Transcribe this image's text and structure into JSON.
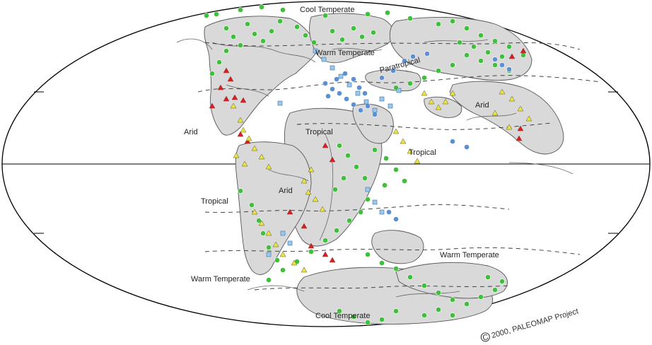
{
  "map": {
    "projection": "mollweide",
    "colors": {
      "land": "#d9d9d9",
      "coast": "#555555",
      "outline": "#000000",
      "cool_temperate": "#3fbf3a",
      "warm_temperate": "#3fbf3a",
      "paratropical": "#5b8fd6",
      "tropical_square": "#9cc8ec",
      "arid_triangle": "#e31a1c",
      "semiarid_triangle": "#ede53a"
    },
    "zone_labels": [
      {
        "id": "cool-temperate-north",
        "text": "Cool Temperate"
      },
      {
        "id": "warm-temperate-north",
        "text": "Warm Temperate"
      },
      {
        "id": "paratropical",
        "text": "Paratropical"
      },
      {
        "id": "arid-east",
        "text": "Arid"
      },
      {
        "id": "arid-west",
        "text": "Arid"
      },
      {
        "id": "tropical-center",
        "text": "Tropical"
      },
      {
        "id": "tropical-east",
        "text": "Tropical"
      },
      {
        "id": "arid-south",
        "text": "Arid"
      },
      {
        "id": "tropical-west",
        "text": "Tropical"
      },
      {
        "id": "warm-temperate-south-east",
        "text": "Warm Temperate"
      },
      {
        "id": "warm-temperate-south-west",
        "text": "Warm Temperate"
      },
      {
        "id": "cool-temperate-south",
        "text": "Cool Temperate"
      }
    ],
    "copyright": "2000, PALEOMAP Project",
    "copyright_symbol": "C"
  }
}
